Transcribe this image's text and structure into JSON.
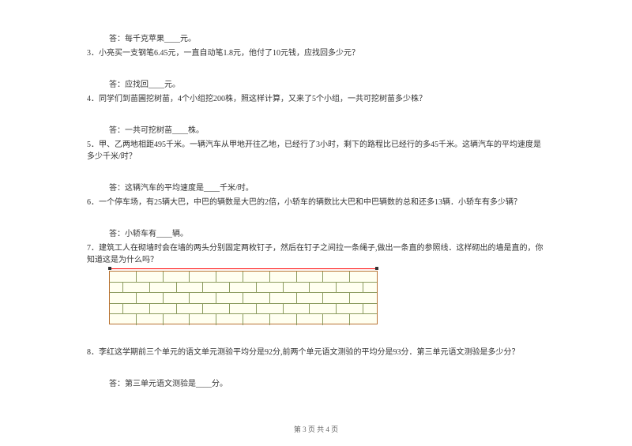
{
  "q2answer": "答：每千克苹果____元。",
  "q3": "3．小亮买一支钢笔6.45元，一直自动笔1.8元，他付了10元钱，应找回多少元？",
  "q3answer": "答：应找回____元。",
  "q4": "4．同学们到苗圃挖树苗，4个小组挖200株，照这样计算，又来了5个小组，一共可挖树苗多少株？",
  "q4answer": "答：一共可挖树苗____株。",
  "q5": "5．甲、乙两地相距495千米。一辆汽车从甲地开往乙地，已经行了3小时，剩下的路程比已经行的多45千米。这辆汽车的平均速度是多少千米/时？",
  "q5answer": "答：这辆汽车的平均速度是____千米/时。",
  "q6": "6．一个停车场，有25辆大巴，中巴的辆数是大巴的2倍，小轿车的辆数比大巴和中巴辆数的总和还多13辆．小轿车有多少辆？",
  "q6answer": "答：小轿车有____辆。",
  "q7": "7．建筑工人在砌墙时会在墙的两头分别固定两枚钉子，然后在钉子之间拉一条绳子,做出一条直的参照线．这样砌出的墙是直的，你知道这是为什么吗？",
  "q8": "8．李红这学期前三个单元的语文单元测验平均分是92分,前两个单元语文测验的平均分是93分．第三单元语文测验是多少分？",
  "q8answer": "答：第三单元语文测验是____分。",
  "footer": "第 3 页 共 4 页",
  "wall": {
    "rows": 5,
    "full_brick_width": 34,
    "half_brick_width": 17,
    "wall_width": 340,
    "border_color": "#8b9b5f",
    "bg_color": "#fffff0",
    "line_color": "#ff0000"
  }
}
